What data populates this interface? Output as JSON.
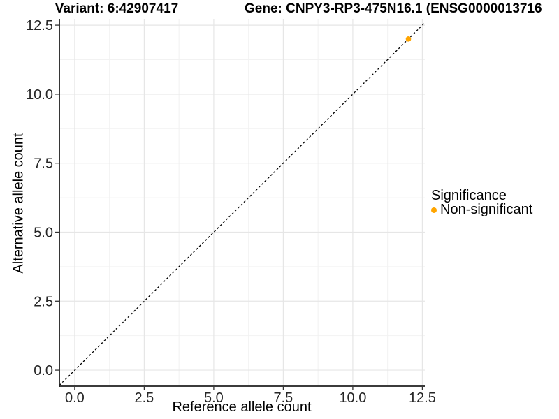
{
  "titles": {
    "variant": "Variant: 6:42907417",
    "gene": "Gene: CNPY3-RP3-475N16.1 (ENSG0000013716"
  },
  "legend": {
    "title": "Significance",
    "items": [
      {
        "label": "Non-significant",
        "color": "#FFA500"
      }
    ]
  },
  "colors": {
    "background": "#FFFFFF",
    "point": "#FFA500",
    "identity_line": "#000000",
    "axis_line": "#1F1F1F",
    "tick_mark": "#333333",
    "tick_label": "#262626",
    "grid_major": "#E6E6E6",
    "grid_minor": "#F2F2F2"
  },
  "chart_data": {
    "type": "scatter",
    "title": "Variant: 6:42907417",
    "title_right": "Gene: CNPY3-RP3-475N16.1 (ENSG0000013716",
    "xlabel": "Reference allele count",
    "ylabel": "Alternative allele count",
    "xlim": [
      -0.55,
      12.59
    ],
    "ylim": [
      -0.58,
      12.73
    ],
    "x_ticks": {
      "values": [
        0,
        2.5,
        5,
        7.5,
        10,
        12.5
      ],
      "labels": [
        "0.0",
        "2.5",
        "5.0",
        "7.5",
        "10.0",
        "12.5"
      ]
    },
    "y_ticks": {
      "values": [
        0,
        2.5,
        5,
        7.5,
        10,
        12.5
      ],
      "labels": [
        "0.0",
        "2.5",
        "5.0",
        "7.5",
        "10.0",
        "12.5"
      ]
    },
    "grid": "major+minor",
    "legend_position": "right",
    "identity_line": {
      "slope": 1,
      "intercept": 0,
      "style": "dashed"
    },
    "series": [
      {
        "name": "Non-significant",
        "color": "#FFA500",
        "points": [
          {
            "x": 12,
            "y": 12
          }
        ]
      }
    ]
  }
}
